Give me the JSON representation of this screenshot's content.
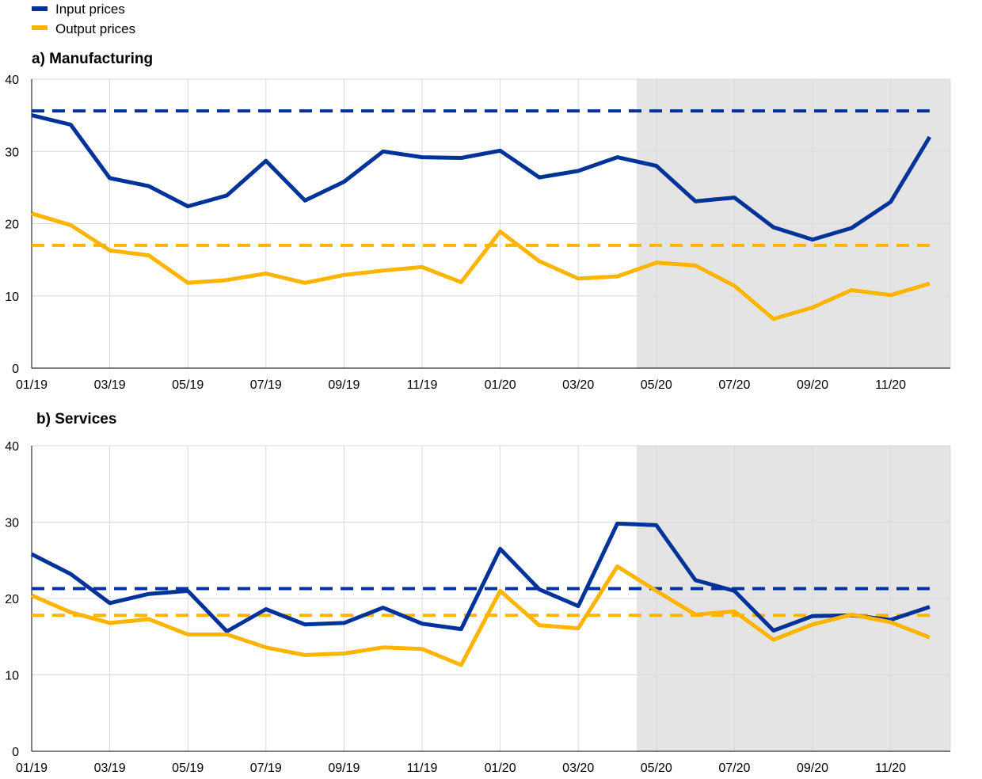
{
  "legend": [
    {
      "label": "Input prices",
      "color": "#003399"
    },
    {
      "label": "Output prices",
      "color": "#FFB400"
    }
  ],
  "chart_data": [
    {
      "type": "line",
      "title": "a) Manufacturing",
      "xlabel": "",
      "ylabel": "",
      "ylim": [
        0,
        40
      ],
      "yticks": [
        0,
        10,
        20,
        30,
        40
      ],
      "xtick_labels": [
        "01/19",
        "03/19",
        "05/19",
        "07/19",
        "09/19",
        "11/19",
        "01/20",
        "03/20",
        "05/20",
        "07/20",
        "09/20",
        "11/20"
      ],
      "x": [
        "01/19",
        "02/19",
        "03/19",
        "04/19",
        "05/19",
        "06/19",
        "07/19",
        "08/19",
        "09/19",
        "10/19",
        "11/19",
        "12/19",
        "01/20",
        "02/20",
        "03/20",
        "04/20",
        "05/20",
        "06/20",
        "07/20",
        "08/20",
        "09/20",
        "10/20",
        "11/20",
        "12/20"
      ],
      "shaded_region": {
        "from": "04/20",
        "to": "12/20"
      },
      "grid": true,
      "series": [
        {
          "name": "Input prices",
          "color": "#003399",
          "style": "solid",
          "values": [
            35.0,
            33.7,
            26.3,
            25.2,
            22.4,
            23.9,
            28.7,
            23.2,
            25.8,
            30.0,
            29.2,
            29.1,
            30.1,
            26.4,
            27.3,
            29.2,
            28.0,
            23.1,
            23.6,
            19.5,
            17.8,
            19.4,
            23.0,
            32.0
          ]
        },
        {
          "name": "Output prices",
          "color": "#FFB400",
          "style": "solid",
          "values": [
            21.4,
            19.8,
            16.3,
            15.6,
            11.8,
            12.2,
            13.1,
            11.8,
            12.9,
            13.5,
            14.0,
            11.9,
            18.9,
            14.8,
            12.4,
            12.7,
            14.6,
            14.2,
            11.4,
            6.8,
            8.4,
            10.8,
            10.1,
            11.7
          ]
        },
        {
          "color": "#003399",
          "style": "dashed",
          "values": [
            35.6,
            35.6,
            35.6,
            35.6,
            35.6,
            35.6,
            35.6,
            35.6,
            35.6,
            35.6,
            35.6,
            35.6,
            35.6,
            35.6,
            35.6,
            35.6,
            35.6,
            35.6,
            35.6,
            35.6,
            35.6,
            35.6,
            35.6,
            35.6
          ]
        },
        {
          "color": "#FFB400",
          "style": "dashed",
          "values": [
            17.0,
            17.0,
            17.0,
            17.0,
            17.0,
            17.0,
            17.0,
            17.0,
            17.0,
            17.0,
            17.0,
            17.0,
            17.0,
            17.0,
            17.0,
            17.0,
            17.0,
            17.0,
            17.0,
            17.0,
            17.0,
            17.0,
            17.0,
            17.0
          ]
        }
      ]
    },
    {
      "type": "line",
      "title": "b) Services",
      "xlabel": "",
      "ylabel": "",
      "ylim": [
        0,
        40
      ],
      "yticks": [
        0,
        10,
        20,
        30,
        40
      ],
      "xtick_labels": [
        "01/19",
        "03/19",
        "05/19",
        "07/19",
        "09/19",
        "11/19",
        "01/20",
        "03/20",
        "05/20",
        "07/20",
        "09/20",
        "11/20"
      ],
      "x": [
        "01/19",
        "02/19",
        "03/19",
        "04/19",
        "05/19",
        "06/19",
        "07/19",
        "08/19",
        "09/19",
        "10/19",
        "11/19",
        "12/19",
        "01/20",
        "02/20",
        "03/20",
        "04/20",
        "05/20",
        "06/20",
        "07/20",
        "08/20",
        "09/20",
        "10/20",
        "11/20",
        "12/20"
      ],
      "shaded_region": {
        "from": "04/20",
        "to": "12/20"
      },
      "grid": true,
      "series": [
        {
          "name": "Input prices",
          "color": "#003399",
          "style": "solid",
          "values": [
            25.8,
            23.2,
            19.4,
            20.6,
            21.0,
            15.7,
            18.6,
            16.6,
            16.8,
            18.8,
            16.7,
            16.0,
            26.5,
            21.2,
            19.0,
            29.8,
            29.6,
            22.4,
            21.0,
            15.8,
            17.7,
            17.8,
            17.2,
            18.9
          ]
        },
        {
          "name": "Output prices",
          "color": "#FFB400",
          "style": "solid",
          "values": [
            20.4,
            18.2,
            16.8,
            17.3,
            15.3,
            15.3,
            13.6,
            12.6,
            12.8,
            13.6,
            13.4,
            11.3,
            21.0,
            16.5,
            16.1,
            24.2,
            21.0,
            17.9,
            18.3,
            14.6,
            16.6,
            17.9,
            16.9,
            14.9
          ]
        },
        {
          "color": "#003399",
          "style": "dashed",
          "values": [
            21.3,
            21.3,
            21.3,
            21.3,
            21.3,
            21.3,
            21.3,
            21.3,
            21.3,
            21.3,
            21.3,
            21.3,
            21.3,
            21.3,
            21.3,
            21.3,
            21.3,
            21.3,
            21.3,
            21.3,
            21.3,
            21.3,
            21.3,
            21.3
          ]
        },
        {
          "color": "#FFB400",
          "style": "dashed",
          "values": [
            17.8,
            17.8,
            17.8,
            17.8,
            17.8,
            17.8,
            17.8,
            17.8,
            17.8,
            17.8,
            17.8,
            17.8,
            17.8,
            17.8,
            17.8,
            17.8,
            17.8,
            17.8,
            17.8,
            17.8,
            17.8,
            17.8,
            17.8,
            17.8
          ]
        }
      ]
    }
  ]
}
